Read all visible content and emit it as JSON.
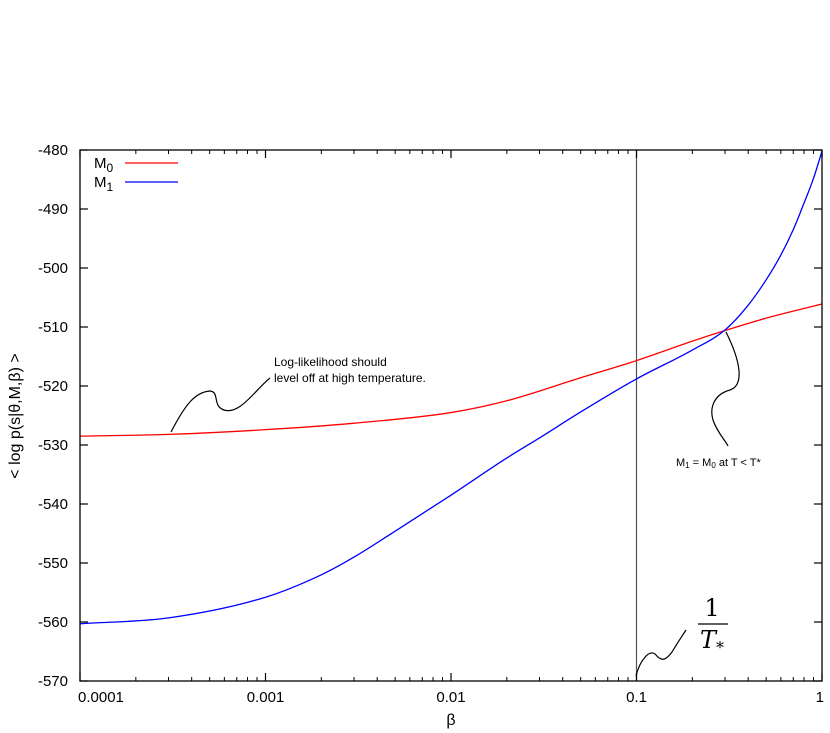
{
  "chart_data": {
    "type": "line",
    "xlabel": "β",
    "ylabel": "< log p(s|θ,M,β) >",
    "xscale": "log",
    "xlim": [
      0.0001,
      1
    ],
    "ylim": [
      -570,
      -480
    ],
    "x_ticks": [
      {
        "value": 0.0001,
        "label": "0.0001"
      },
      {
        "value": 0.001,
        "label": "0.001"
      },
      {
        "value": 0.01,
        "label": "0.01"
      },
      {
        "value": 0.1,
        "label": "0.1"
      },
      {
        "value": 1,
        "label": "1"
      }
    ],
    "y_ticks": [
      {
        "value": -480,
        "label": "-480"
      },
      {
        "value": -490,
        "label": "-490"
      },
      {
        "value": -500,
        "label": "-500"
      },
      {
        "value": -510,
        "label": "-510"
      },
      {
        "value": -520,
        "label": "-520"
      },
      {
        "value": -530,
        "label": "-530"
      },
      {
        "value": -540,
        "label": "-540"
      },
      {
        "value": -550,
        "label": "-550"
      },
      {
        "value": -560,
        "label": "-560"
      },
      {
        "value": -570,
        "label": "-570"
      }
    ],
    "legend": {
      "position": "top-left"
    },
    "series": [
      {
        "name": "M",
        "sub": "0",
        "color": "#ff0000",
        "x": [
          0.0001,
          0.0003,
          0.001,
          0.003,
          0.01,
          0.02,
          0.05,
          0.1,
          0.2,
          0.3,
          0.5,
          1
        ],
        "y": [
          -528.5,
          -528.2,
          -527.4,
          -526.3,
          -524.5,
          -522.5,
          -518.6,
          -515.7,
          -512.4,
          -510.6,
          -508.5,
          -506.1
        ]
      },
      {
        "name": "M",
        "sub": "1",
        "color": "#0000ff",
        "x": [
          0.0001,
          0.0003,
          0.001,
          0.002,
          0.003,
          0.005,
          0.01,
          0.02,
          0.03,
          0.05,
          0.1,
          0.2,
          0.3,
          0.4,
          0.5,
          0.6,
          0.7,
          0.8,
          0.9,
          1
        ],
        "y": [
          -560.3,
          -559.3,
          -555.8,
          -552.0,
          -549.0,
          -544.6,
          -538.5,
          -532.2,
          -528.8,
          -524.4,
          -518.8,
          -513.9,
          -510.5,
          -506.3,
          -502.0,
          -497.8,
          -493.5,
          -489.0,
          -484.8,
          -480.2
        ]
      }
    ],
    "vline": {
      "x": 0.1,
      "color": "#555555"
    },
    "annotations": {
      "high_temp_line1": "Log-likelihood should",
      "high_temp_line2": "level off at high temperature.",
      "crossing": "M",
      "crossing_sub1": "1",
      "crossing_mid": " = M",
      "crossing_sub0": "0",
      "crossing_tail": " at T < T*",
      "frac_num": "1",
      "frac_den": "T",
      "frac_den_sub": "*"
    }
  }
}
